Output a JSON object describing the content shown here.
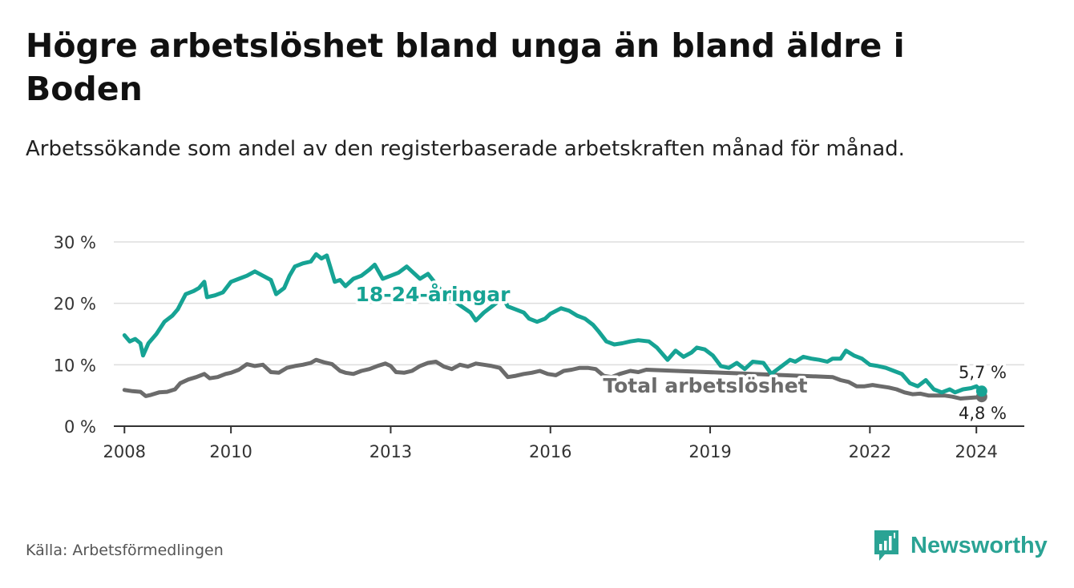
{
  "title": "Högre arbetslöshet bland unga än bland äldre i Boden",
  "subtitle": "Arbetssökande som andel av den registerbaserade arbetskraften månad för månad.",
  "source": "Källa: Arbetsförmedlingen",
  "brand": "Newsworthy",
  "colors": {
    "youth": "#16a394",
    "total": "#6b6b6b",
    "grid": "#dddddd",
    "axis": "#333333",
    "brand": "#2aa394"
  },
  "chart_data": {
    "type": "line",
    "title": "Högre arbetslöshet bland unga än bland äldre i Boden",
    "xlabel": "",
    "ylabel": "",
    "xlim": [
      2007.8,
      2024.9
    ],
    "ylim": [
      0,
      30
    ],
    "yticks": [
      0,
      10,
      20,
      30
    ],
    "ytick_labels": [
      "0 %",
      "10 %",
      "20 %",
      "30 %"
    ],
    "xticks": [
      2008,
      2010,
      2013,
      2016,
      2019,
      2022,
      2024
    ],
    "xtick_labels": [
      "2008",
      "2010",
      "2013",
      "2016",
      "2019",
      "2022",
      "2024"
    ],
    "grid": true,
    "series": [
      {
        "name": "18-24-åringar",
        "label": "18-24-åringar",
        "end_label": "5,7 %",
        "points": [
          [
            2008.0,
            14.8
          ],
          [
            2008.1,
            13.8
          ],
          [
            2008.2,
            14.2
          ],
          [
            2008.3,
            13.5
          ],
          [
            2008.35,
            11.5
          ],
          [
            2008.45,
            13.5
          ],
          [
            2008.6,
            15.0
          ],
          [
            2008.75,
            17.0
          ],
          [
            2008.9,
            18.0
          ],
          [
            2009.0,
            19.0
          ],
          [
            2009.15,
            21.5
          ],
          [
            2009.3,
            22.0
          ],
          [
            2009.4,
            22.5
          ],
          [
            2009.5,
            23.5
          ],
          [
            2009.55,
            21.0
          ],
          [
            2009.7,
            21.3
          ],
          [
            2009.85,
            21.8
          ],
          [
            2010.0,
            23.5
          ],
          [
            2010.15,
            24.0
          ],
          [
            2010.3,
            24.5
          ],
          [
            2010.45,
            25.2
          ],
          [
            2010.6,
            24.5
          ],
          [
            2010.75,
            23.8
          ],
          [
            2010.85,
            21.5
          ],
          [
            2011.0,
            22.5
          ],
          [
            2011.1,
            24.5
          ],
          [
            2011.2,
            26.0
          ],
          [
            2011.35,
            26.5
          ],
          [
            2011.5,
            26.8
          ],
          [
            2011.6,
            28.0
          ],
          [
            2011.7,
            27.3
          ],
          [
            2011.8,
            27.8
          ],
          [
            2011.95,
            23.5
          ],
          [
            2012.05,
            23.8
          ],
          [
            2012.15,
            22.8
          ],
          [
            2012.3,
            24.0
          ],
          [
            2012.45,
            24.5
          ],
          [
            2012.6,
            25.5
          ],
          [
            2012.7,
            26.3
          ],
          [
            2012.85,
            24.0
          ],
          [
            2013.0,
            24.5
          ],
          [
            2013.15,
            25.0
          ],
          [
            2013.3,
            26.0
          ],
          [
            2013.4,
            25.2
          ],
          [
            2013.55,
            24.0
          ],
          [
            2013.7,
            24.8
          ],
          [
            2014.0,
            21.5
          ],
          [
            2014.5,
            18.5
          ],
          [
            2014.6,
            17.2
          ],
          [
            2014.75,
            18.5
          ],
          [
            2014.9,
            19.5
          ],
          [
            2015.05,
            20.5
          ],
          [
            2015.1,
            21.0
          ],
          [
            2015.2,
            19.5
          ],
          [
            2015.35,
            19.0
          ],
          [
            2015.5,
            18.5
          ],
          [
            2015.6,
            17.5
          ],
          [
            2015.75,
            17.0
          ],
          [
            2015.9,
            17.5
          ],
          [
            2016.0,
            18.3
          ],
          [
            2016.2,
            19.2
          ],
          [
            2016.35,
            18.8
          ],
          [
            2016.5,
            18.0
          ],
          [
            2016.65,
            17.5
          ],
          [
            2016.8,
            16.5
          ],
          [
            2016.9,
            15.5
          ],
          [
            2017.05,
            13.8
          ],
          [
            2017.2,
            13.3
          ],
          [
            2017.35,
            13.5
          ],
          [
            2017.5,
            13.8
          ],
          [
            2017.65,
            14.0
          ],
          [
            2017.85,
            13.8
          ],
          [
            2018.0,
            12.8
          ],
          [
            2018.2,
            10.8
          ],
          [
            2018.35,
            12.3
          ],
          [
            2018.5,
            11.3
          ],
          [
            2018.65,
            12.0
          ],
          [
            2018.75,
            12.8
          ],
          [
            2018.9,
            12.5
          ],
          [
            2019.05,
            11.5
          ],
          [
            2019.2,
            9.8
          ],
          [
            2019.35,
            9.5
          ],
          [
            2019.5,
            10.3
          ],
          [
            2019.65,
            9.3
          ],
          [
            2019.8,
            10.5
          ],
          [
            2020.0,
            10.3
          ],
          [
            2020.15,
            8.5
          ],
          [
            2020.3,
            9.5
          ],
          [
            2020.5,
            10.8
          ],
          [
            2020.6,
            10.5
          ],
          [
            2020.75,
            11.3
          ],
          [
            2020.9,
            11.0
          ],
          [
            2021.05,
            10.8
          ],
          [
            2021.2,
            10.5
          ],
          [
            2021.3,
            11.0
          ],
          [
            2021.45,
            11.0
          ],
          [
            2021.55,
            12.3
          ],
          [
            2021.7,
            11.5
          ],
          [
            2021.85,
            11.0
          ],
          [
            2022.0,
            10.0
          ],
          [
            2022.15,
            9.8
          ],
          [
            2022.3,
            9.5
          ],
          [
            2022.45,
            9.0
          ],
          [
            2022.6,
            8.5
          ],
          [
            2022.75,
            7.0
          ],
          [
            2022.9,
            6.5
          ],
          [
            2023.05,
            7.5
          ],
          [
            2023.2,
            6.0
          ],
          [
            2023.35,
            5.5
          ],
          [
            2023.5,
            6.0
          ],
          [
            2023.6,
            5.5
          ],
          [
            2023.75,
            6.0
          ],
          [
            2023.9,
            6.2
          ],
          [
            2024.0,
            6.5
          ],
          [
            2024.1,
            5.7
          ]
        ]
      },
      {
        "name": "Total arbetslöshet",
        "label": "Total arbetslöshet",
        "end_label": "4,8 %",
        "points": [
          [
            2008.0,
            5.9
          ],
          [
            2008.15,
            5.7
          ],
          [
            2008.3,
            5.6
          ],
          [
            2008.4,
            4.9
          ],
          [
            2008.5,
            5.1
          ],
          [
            2008.65,
            5.5
          ],
          [
            2008.8,
            5.6
          ],
          [
            2008.95,
            6.0
          ],
          [
            2009.05,
            7.0
          ],
          [
            2009.2,
            7.6
          ],
          [
            2009.35,
            8.0
          ],
          [
            2009.5,
            8.5
          ],
          [
            2009.6,
            7.8
          ],
          [
            2009.75,
            8.0
          ],
          [
            2009.9,
            8.5
          ],
          [
            2010.0,
            8.7
          ],
          [
            2010.15,
            9.2
          ],
          [
            2010.3,
            10.1
          ],
          [
            2010.45,
            9.8
          ],
          [
            2010.6,
            10.0
          ],
          [
            2010.75,
            8.8
          ],
          [
            2010.9,
            8.7
          ],
          [
            2011.05,
            9.5
          ],
          [
            2011.2,
            9.8
          ],
          [
            2011.35,
            10.0
          ],
          [
            2011.5,
            10.3
          ],
          [
            2011.6,
            10.8
          ],
          [
            2011.75,
            10.4
          ],
          [
            2011.9,
            10.1
          ],
          [
            2012.05,
            9.0
          ],
          [
            2012.15,
            8.7
          ],
          [
            2012.3,
            8.5
          ],
          [
            2012.45,
            9.0
          ],
          [
            2012.6,
            9.3
          ],
          [
            2012.75,
            9.8
          ],
          [
            2012.9,
            10.2
          ],
          [
            2013.0,
            9.8
          ],
          [
            2013.1,
            8.8
          ],
          [
            2013.25,
            8.7
          ],
          [
            2013.4,
            9.0
          ],
          [
            2013.55,
            9.8
          ],
          [
            2013.7,
            10.3
          ],
          [
            2013.85,
            10.5
          ],
          [
            2014.0,
            9.7
          ],
          [
            2014.15,
            9.3
          ],
          [
            2014.3,
            10.0
          ],
          [
            2014.45,
            9.7
          ],
          [
            2014.6,
            10.2
          ],
          [
            2014.75,
            10.0
          ],
          [
            2014.9,
            9.8
          ],
          [
            2015.05,
            9.5
          ],
          [
            2015.2,
            8.0
          ],
          [
            2015.35,
            8.2
          ],
          [
            2015.5,
            8.5
          ],
          [
            2015.65,
            8.7
          ],
          [
            2015.8,
            9.0
          ],
          [
            2015.95,
            8.5
          ],
          [
            2016.1,
            8.3
          ],
          [
            2016.25,
            9.0
          ],
          [
            2016.4,
            9.2
          ],
          [
            2016.55,
            9.5
          ],
          [
            2016.7,
            9.5
          ],
          [
            2016.85,
            9.3
          ],
          [
            2017.0,
            8.2
          ],
          [
            2017.15,
            8.0
          ],
          [
            2017.3,
            8.5
          ],
          [
            2017.5,
            9.0
          ],
          [
            2017.65,
            8.8
          ],
          [
            2017.8,
            9.2
          ],
          [
            2021.3,
            8.0
          ],
          [
            2021.45,
            7.5
          ],
          [
            2021.6,
            7.2
          ],
          [
            2021.75,
            6.5
          ],
          [
            2021.9,
            6.5
          ],
          [
            2022.05,
            6.7
          ],
          [
            2022.2,
            6.5
          ],
          [
            2022.35,
            6.3
          ],
          [
            2022.5,
            6.0
          ],
          [
            2022.65,
            5.5
          ],
          [
            2022.8,
            5.2
          ],
          [
            2022.95,
            5.3
          ],
          [
            2023.1,
            5.0
          ],
          [
            2023.25,
            5.0
          ],
          [
            2023.4,
            5.0
          ],
          [
            2023.55,
            4.8
          ],
          [
            2023.7,
            4.5
          ],
          [
            2023.85,
            4.6
          ],
          [
            2024.0,
            4.7
          ],
          [
            2024.1,
            4.8
          ]
        ]
      }
    ]
  }
}
